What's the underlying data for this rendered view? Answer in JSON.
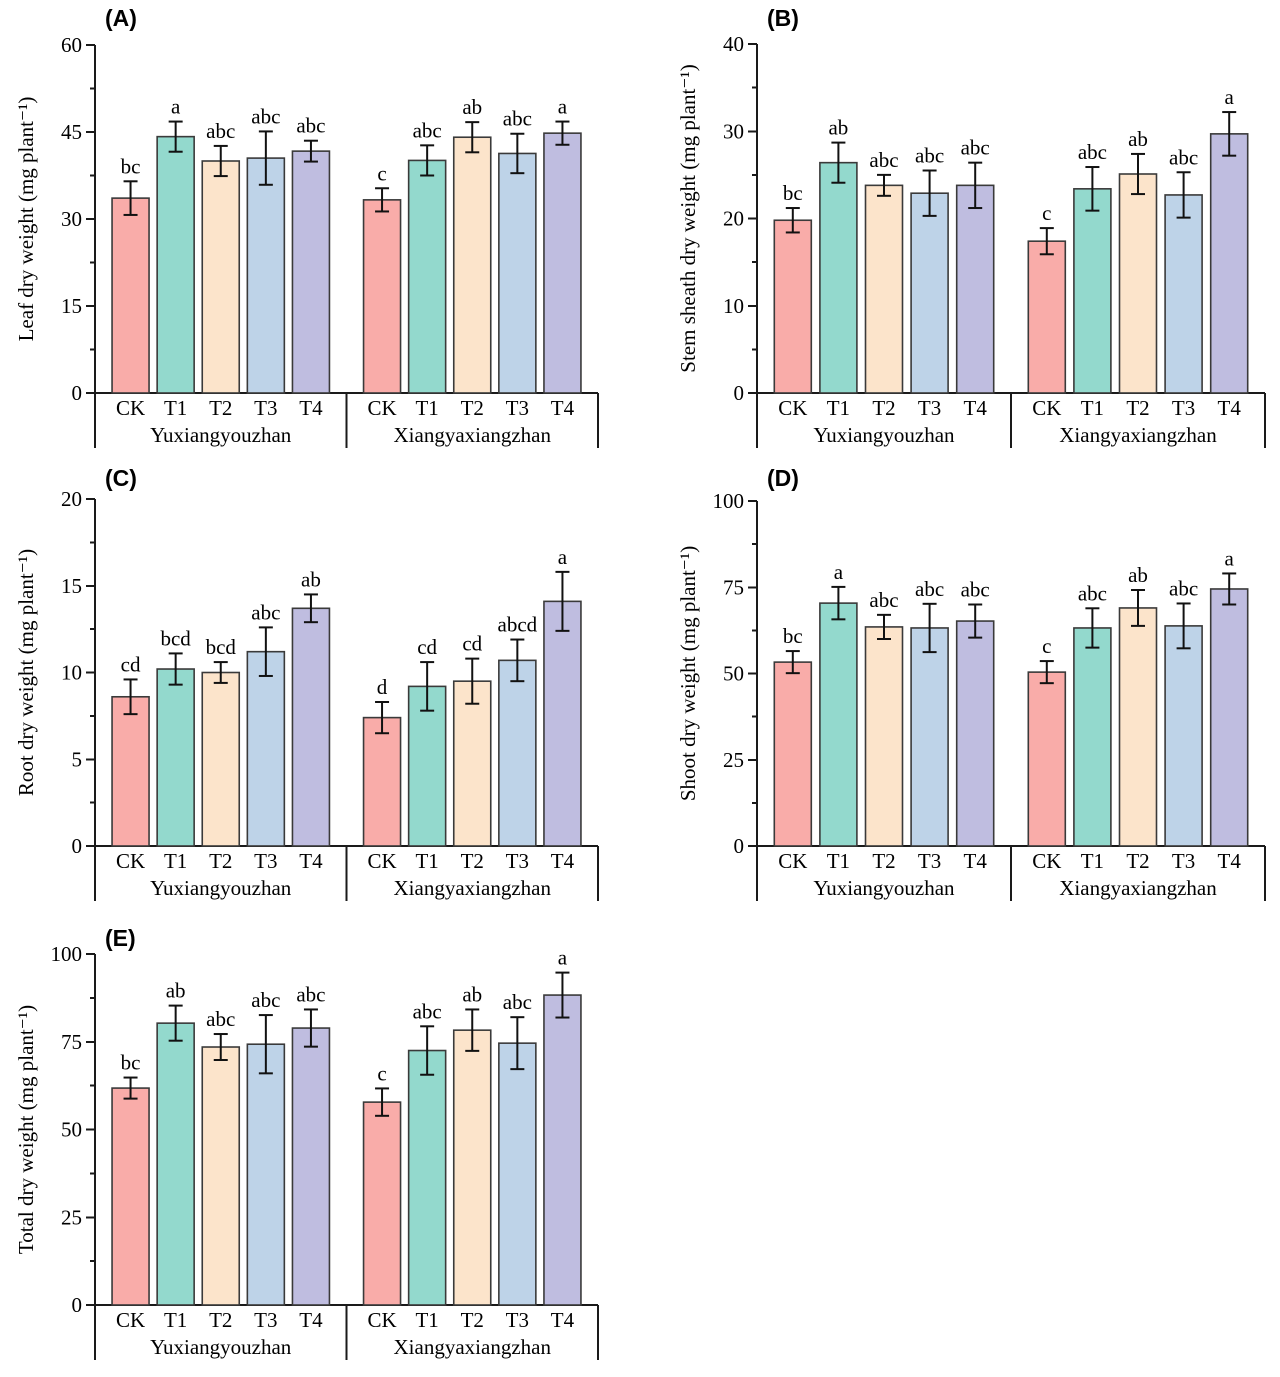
{
  "figure": {
    "background": "#ffffff",
    "axis_color": "#1a1a1a",
    "bar_stroke": "#3a3a3a",
    "error_bar_color": "#111111",
    "bar_colors": [
      "#F9ACA9",
      "#93D9CD",
      "#FCE4CB",
      "#BED3E8",
      "#BFBDE0"
    ],
    "categories": [
      "CK",
      "T1",
      "T2",
      "T3",
      "T4"
    ],
    "group_labels": [
      "Yuxiangyouzhan",
      "Xiangyaxiangzhan"
    ]
  },
  "chart_data": [
    {
      "type": "bar",
      "id": "A",
      "panel_label": "(A)",
      "title": "",
      "xlabel": "",
      "ylabel": "Leaf dry weight (mg plant⁻¹)",
      "ylim": [
        0,
        60
      ],
      "yticks": [
        0,
        15,
        30,
        45,
        60
      ],
      "minor_tick_step": 7.5,
      "grid": false,
      "legend": "none",
      "categories": [
        "CK",
        "T1",
        "T2",
        "T3",
        "T4"
      ],
      "series": [
        {
          "name": "Yuxiangyouzhan",
          "values": [
            33.6,
            44.2,
            40.0,
            40.5,
            41.7
          ],
          "errors": [
            2.9,
            2.6,
            2.6,
            4.6,
            1.8
          ],
          "sig_letters": [
            "bc",
            "a",
            "abc",
            "abc",
            "abc"
          ]
        },
        {
          "name": "Xiangyaxiangzhan",
          "values": [
            33.3,
            40.1,
            44.1,
            41.3,
            44.8
          ],
          "errors": [
            2.0,
            2.6,
            2.6,
            3.4,
            2.0
          ],
          "sig_letters": [
            "c",
            "abc",
            "ab",
            "abc",
            "a"
          ]
        }
      ]
    },
    {
      "type": "bar",
      "id": "B",
      "panel_label": "(B)",
      "title": "",
      "xlabel": "",
      "ylabel": "Stem sheath dry weight (mg plant⁻¹)",
      "ylim": [
        0,
        40
      ],
      "yticks": [
        0,
        10,
        20,
        30,
        40
      ],
      "minor_tick_step": 5,
      "grid": false,
      "legend": "none",
      "categories": [
        "CK",
        "T1",
        "T2",
        "T3",
        "T4"
      ],
      "series": [
        {
          "name": "Yuxiangyouzhan",
          "values": [
            19.8,
            26.4,
            23.8,
            22.9,
            23.8
          ],
          "errors": [
            1.4,
            2.3,
            1.2,
            2.6,
            2.6
          ],
          "sig_letters": [
            "bc",
            "ab",
            "abc",
            "abc",
            "abc"
          ]
        },
        {
          "name": "Xiangyaxiangzhan",
          "values": [
            17.4,
            23.4,
            25.1,
            22.7,
            29.7
          ],
          "errors": [
            1.5,
            2.5,
            2.3,
            2.6,
            2.5
          ],
          "sig_letters": [
            "c",
            "abc",
            "ab",
            "abc",
            "a"
          ]
        }
      ]
    },
    {
      "type": "bar",
      "id": "C",
      "panel_label": "(C)",
      "title": "",
      "xlabel": "",
      "ylabel": "Root dry weight (mg plant⁻¹)",
      "ylim": [
        0,
        20
      ],
      "yticks": [
        0,
        5,
        10,
        15,
        20
      ],
      "minor_tick_step": 2.5,
      "grid": false,
      "legend": "none",
      "categories": [
        "CK",
        "T1",
        "T2",
        "T3",
        "T4"
      ],
      "series": [
        {
          "name": "Yuxiangyouzhan",
          "values": [
            8.6,
            10.2,
            10.0,
            11.2,
            13.7
          ],
          "errors": [
            1.0,
            0.9,
            0.6,
            1.4,
            0.8
          ],
          "sig_letters": [
            "cd",
            "bcd",
            "bcd",
            "abc",
            "ab"
          ]
        },
        {
          "name": "Xiangyaxiangzhan",
          "values": [
            7.4,
            9.2,
            9.5,
            10.7,
            14.1
          ],
          "errors": [
            0.9,
            1.4,
            1.3,
            1.2,
            1.7
          ],
          "sig_letters": [
            "d",
            "cd",
            "cd",
            "abcd",
            "a"
          ]
        }
      ]
    },
    {
      "type": "bar",
      "id": "D",
      "panel_label": "(D)",
      "title": "",
      "xlabel": "",
      "ylabel": "Shoot dry weight (mg plant⁻¹)",
      "ylim": [
        0,
        100
      ],
      "yticks": [
        0,
        25,
        50,
        75,
        100
      ],
      "minor_tick_step": 12.5,
      "grid": false,
      "legend": "none",
      "categories": [
        "CK",
        "T1",
        "T2",
        "T3",
        "T4"
      ],
      "series": [
        {
          "name": "Yuxiangyouzhan",
          "values": [
            53.3,
            70.4,
            63.5,
            63.2,
            65.2
          ],
          "errors": [
            3.2,
            4.7,
            3.5,
            7.0,
            4.8
          ],
          "sig_letters": [
            "bc",
            "a",
            "abc",
            "abc",
            "abc"
          ]
        },
        {
          "name": "Xiangyaxiangzhan",
          "values": [
            50.4,
            63.2,
            69.0,
            63.8,
            74.5
          ],
          "errors": [
            3.2,
            5.7,
            5.2,
            6.5,
            4.5
          ],
          "sig_letters": [
            "c",
            "abc",
            "ab",
            "abc",
            "a"
          ]
        }
      ]
    },
    {
      "type": "bar",
      "id": "E",
      "panel_label": "(E)",
      "title": "",
      "xlabel": "",
      "ylabel": "Total dry weight (mg plant⁻¹)",
      "ylim": [
        0,
        100
      ],
      "yticks": [
        0,
        25,
        50,
        75,
        100
      ],
      "minor_tick_step": 12.5,
      "grid": false,
      "legend": "none",
      "categories": [
        "CK",
        "T1",
        "T2",
        "T3",
        "T4"
      ],
      "series": [
        {
          "name": "Yuxiangyouzhan",
          "values": [
            61.8,
            80.3,
            73.5,
            74.3,
            78.9
          ],
          "errors": [
            3.0,
            5.0,
            3.7,
            8.3,
            5.3
          ],
          "sig_letters": [
            "bc",
            "ab",
            "abc",
            "abc",
            "abc"
          ]
        },
        {
          "name": "Xiangyaxiangzhan",
          "values": [
            57.8,
            72.5,
            78.3,
            74.6,
            88.3
          ],
          "errors": [
            3.9,
            6.9,
            5.9,
            7.4,
            6.4
          ],
          "sig_letters": [
            "c",
            "abc",
            "ab",
            "abc",
            "a"
          ]
        }
      ]
    }
  ]
}
